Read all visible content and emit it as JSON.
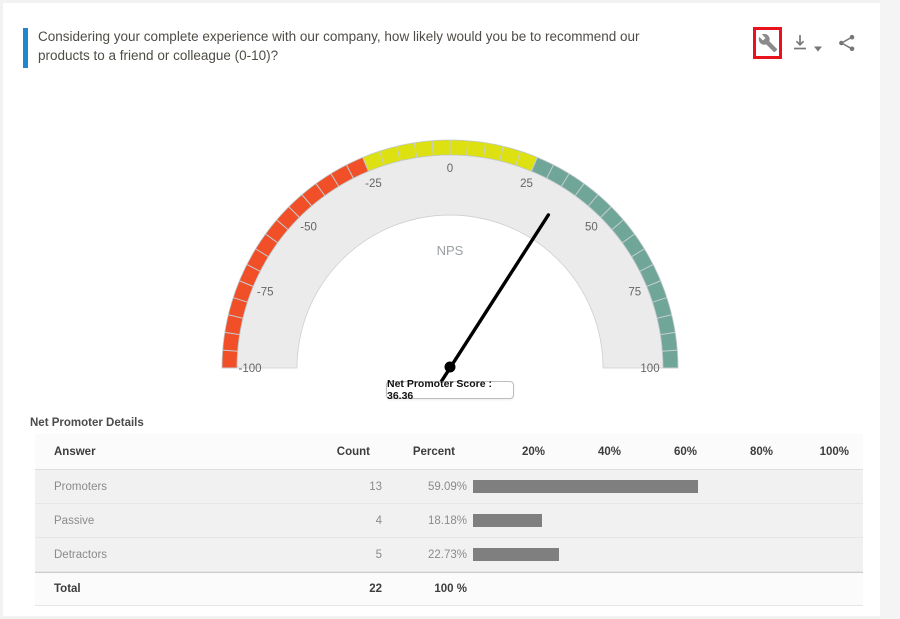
{
  "header": {
    "question": "Considering your complete experience with our company, how likely would you be to recommend our products to a friend or colleague (0-10)?",
    "accent_color": "#1e87d0",
    "toolbar": {
      "icons": [
        {
          "name": "wrench-icon",
          "highlighted": true
        },
        {
          "name": "download-icon",
          "highlighted": false
        },
        {
          "name": "caret-down-icon",
          "highlighted": false
        },
        {
          "name": "share-icon",
          "highlighted": false
        }
      ],
      "highlight_color": "#e8131d"
    }
  },
  "chart_data": {
    "type": "gauge",
    "title": "NPS",
    "min": -100,
    "max": 100,
    "value": 36.36,
    "tooltip": "Net Promoter Score : 36.36",
    "tick_labels": [
      -100,
      -75,
      -50,
      -25,
      0,
      25,
      50,
      75,
      100
    ],
    "minor_tick_step": 5,
    "bands": [
      {
        "from": -100,
        "to": -25,
        "color": "#f04f28"
      },
      {
        "from": -25,
        "to": 25,
        "color": "#dde011"
      },
      {
        "from": 25,
        "to": 100,
        "color": "#70a697"
      }
    ],
    "body_color": "#ebebeb",
    "tick_color": "#c3ced4",
    "label_color": "#666666",
    "title_color": "#9aa0a3",
    "needle_color": "#000000"
  },
  "table": {
    "title": "Net Promoter Details",
    "columns": [
      "Answer",
      "Count",
      "Percent"
    ],
    "axis_labels": [
      "20%",
      "40%",
      "60%",
      "80%",
      "100%"
    ],
    "axis_max": 100,
    "rows": [
      {
        "answer": "Promoters",
        "count": "13",
        "percent": "59.09%",
        "bar": 59.09
      },
      {
        "answer": "Passive",
        "count": "4",
        "percent": "18.18%",
        "bar": 18.18
      },
      {
        "answer": "Detractors",
        "count": "5",
        "percent": "22.73%",
        "bar": 22.73
      }
    ],
    "total": {
      "answer": "Total",
      "count": "22",
      "percent": "100 %"
    },
    "bar_color": "#7f7f7f"
  }
}
